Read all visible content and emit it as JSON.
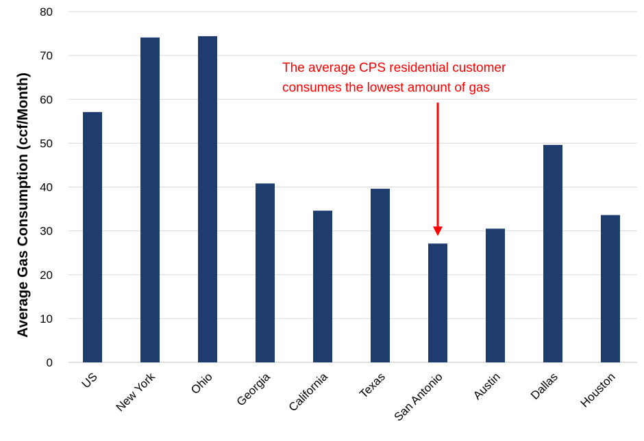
{
  "chart_data": {
    "type": "bar",
    "categories": [
      "US",
      "New York",
      "Ohio",
      "Georgia",
      "California",
      "Texas",
      "San Antonio",
      "Austin",
      "Dallas",
      "Houston"
    ],
    "values": [
      57.1,
      74.1,
      74.4,
      40.8,
      34.6,
      39.6,
      27.1,
      30.5,
      49.6,
      33.6
    ],
    "title": "",
    "xlabel": "",
    "ylabel": "Average Gas Consumption (ccf/Month)",
    "ylim": [
      0,
      80
    ],
    "yticks": [
      "0",
      "10",
      "20",
      "30",
      "40",
      "50",
      "60",
      "70",
      "80"
    ],
    "grid": true,
    "legend": "none",
    "bar_color": "#1f3c6e",
    "annotation": {
      "lines": [
        "The average CPS residential customer",
        "consumes the lowest amount of gas"
      ],
      "target": "San Antonio",
      "color": "#ff0000"
    }
  }
}
